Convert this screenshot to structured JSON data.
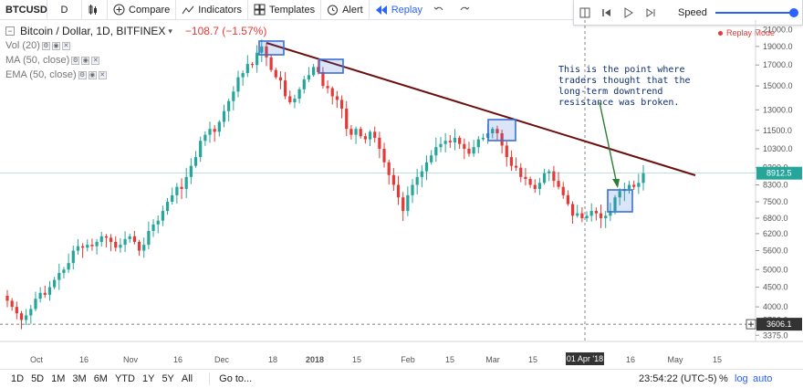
{
  "toolbar": {
    "symbol": "BTCUSD",
    "resolution": "D",
    "compare_label": "Compare",
    "indicators_label": "Indicators",
    "templates_label": "Templates",
    "alert_label": "Alert",
    "replay_label": "Replay"
  },
  "replay_panel": {
    "speed_label": "Speed",
    "speed_level": 0.95
  },
  "legend": {
    "title": "Bitcoin / Dollar, 1D, BITFINEX",
    "change": "−108.7 (−1.57%)",
    "indicators": [
      "Vol (20)",
      "MA (50, close)",
      "EMA (50, close)"
    ]
  },
  "replay_mode_label": "Replay Mode",
  "annotation_text": "This is the point where\ntraders thought that the\nlong-term downtrend\nresistance was broken.",
  "chart_data": {
    "type": "candlestick",
    "price_ticks": [
      "21000.0",
      "19000.0",
      "17000.0",
      "15000.0",
      "13000.0",
      "11500.0",
      "10300.0",
      "9200.0",
      "8300.0",
      "7500.0",
      "6800.0",
      "6200.0",
      "5600.0",
      "5000.0",
      "4500.0",
      "4000.0",
      "3700.0",
      "3375.0"
    ],
    "time_ticks": [
      "Oct",
      "16",
      "Nov",
      "16",
      "Dec",
      "18",
      "2018",
      "15",
      "Feb",
      "15",
      "Mar",
      "15",
      "01 Apr '18",
      "16",
      "May",
      "15"
    ],
    "current_price_label": "8912.5",
    "crosshair_price_label": "3606.1",
    "crosshair_time_label": "01 Apr '18",
    "up_color": "#26a69a",
    "down_color": "#e53935",
    "trendline_color": "#6d0e0e",
    "box_color": "#3a6fd8",
    "closes": [
      4150,
      4000,
      3850,
      3700,
      3800,
      3950,
      4200,
      4350,
      4300,
      4500,
      4700,
      4900,
      5000,
      5200,
      5600,
      5750,
      5700,
      5800,
      5750,
      5900,
      6100,
      6050,
      5900,
      5700,
      5800,
      6000,
      6100,
      5900,
      5600,
      5800,
      6300,
      6550,
      6700,
      7100,
      7500,
      7800,
      8200,
      8100,
      8700,
      9300,
      9800,
      10800,
      11200,
      11600,
      11400,
      12100,
      12900,
      13700,
      14500,
      15800,
      16200,
      17100,
      17000,
      18300,
      19000,
      17800,
      16500,
      15800,
      15500,
      14100,
      13600,
      13900,
      14700,
      15600,
      16000,
      16800,
      16300,
      15000,
      14800,
      14100,
      13800,
      13100,
      11600,
      11200,
      11600,
      11100,
      10900,
      11400,
      11000,
      10300,
      9500,
      8800,
      8300,
      7700,
      7100,
      7800,
      8300,
      8700,
      9000,
      9500,
      9900,
      10400,
      10600,
      10800,
      10700,
      11000,
      10600,
      10300,
      10000,
      10400,
      10900,
      11000,
      11300,
      11600,
      11300,
      10500,
      9800,
      9300,
      9200,
      8700,
      8600,
      8300,
      8100,
      8400,
      8900,
      9000,
      8500,
      8200,
      7800,
      7400,
      6900,
      7000,
      6800,
      6900,
      7100,
      7000,
      6800,
      6900,
      7100,
      7700,
      8000,
      8100,
      8300,
      8200,
      8400,
      8900
    ]
  },
  "bottom_bar": {
    "ranges": [
      "1D",
      "5D",
      "1M",
      "3M",
      "6M",
      "YTD",
      "1Y",
      "5Y",
      "All"
    ],
    "goto_label": "Go to...",
    "clock": "23:54:22 (UTC-5)",
    "percent_label": "%",
    "log_label": "log",
    "auto_label": "auto"
  }
}
